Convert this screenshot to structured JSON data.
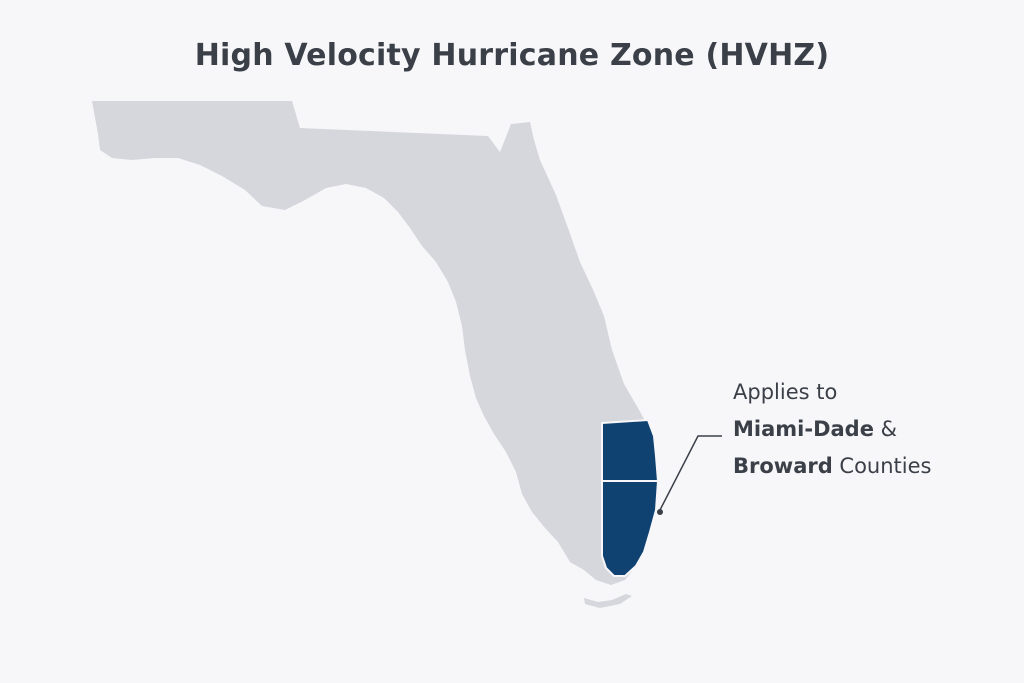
{
  "title": "High Velocity Hurricane Zone (HVHZ)",
  "callout": {
    "line1": "Applies to",
    "county1": "Miami-Dade",
    "amp": " &",
    "county2": "Broward",
    "suffix": " Counties"
  },
  "colors": {
    "background": "#f7f7fa",
    "state_fill": "#d6d7dc",
    "hvhz_fill": "#0f4270",
    "text": "#3b4048",
    "leader": "#3b4048"
  },
  "regions": [
    {
      "id": "florida",
      "highlighted": false
    },
    {
      "id": "broward-county",
      "highlighted": true
    },
    {
      "id": "miami-dade-county",
      "highlighted": true
    }
  ]
}
